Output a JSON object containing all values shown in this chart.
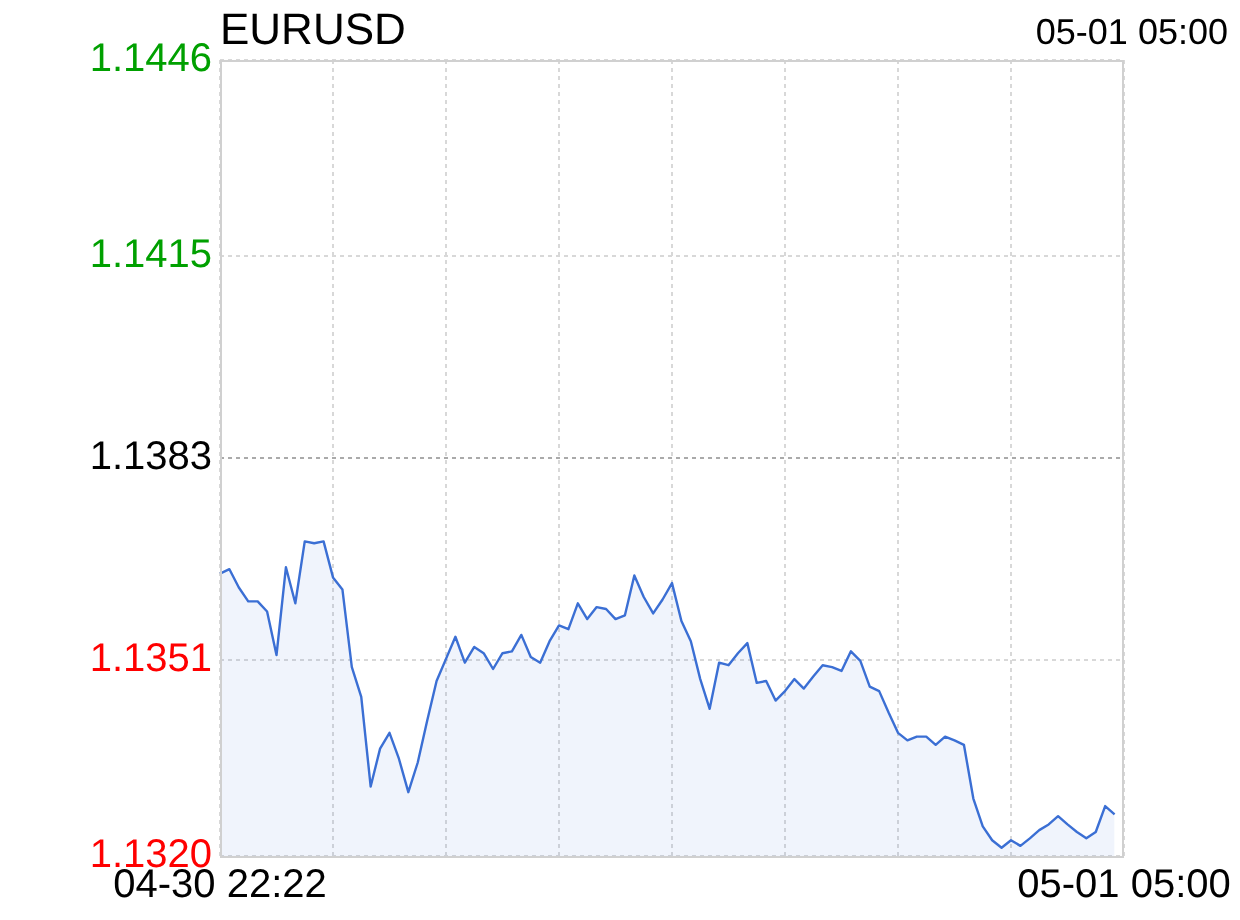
{
  "chart_data": {
    "type": "area",
    "title": "EURUSD",
    "subtitle": "05-01 05:00",
    "categories": [
      "04-30 22:22",
      null,
      null,
      null,
      null,
      null,
      null,
      null,
      null,
      null,
      null,
      null,
      null,
      null,
      null,
      null,
      null,
      null,
      null,
      null,
      null,
      null,
      null,
      null,
      null,
      null,
      null,
      null,
      null,
      null,
      null,
      null,
      null,
      null,
      null,
      null,
      null,
      null,
      null,
      null,
      null,
      null,
      null,
      null,
      null,
      null,
      null,
      null,
      null,
      null,
      null,
      null,
      null,
      null,
      null,
      null,
      null,
      null,
      null,
      null,
      null,
      null,
      null,
      null,
      null,
      null,
      null,
      null,
      null,
      null,
      null,
      null,
      null,
      null,
      null,
      null,
      null,
      null,
      null,
      null,
      null,
      null,
      null,
      null,
      null,
      null,
      null,
      null,
      null,
      null,
      null,
      null,
      null,
      null,
      null,
      null,
      "05-01 05:00"
    ],
    "ylim": [
      1.132,
      1.1446
    ],
    "yticks": [
      {
        "value": 1.132,
        "label": "1.1320"
      },
      1.1351,
      1.1383,
      1.1415,
      1.1446
    ],
    "ref_lines": [
      {
        "axis": "y",
        "value": 1.1383,
        "color": "#aaaaaa",
        "line_style": "dotted"
      }
    ],
    "grid": true,
    "legend": false,
    "marker": "none",
    "line_style": "solid",
    "series": [
      {
        "color": "#3b6fd4",
        "values": [
          1.13647,
          1.13654,
          1.13625,
          1.13603,
          1.13603,
          1.13587,
          1.13518,
          1.13657,
          1.136,
          1.13698,
          1.13695,
          1.13698,
          1.13641,
          1.13622,
          1.13499,
          1.13452,
          1.1331,
          1.1337,
          1.13395,
          1.13354,
          1.13301,
          1.13348,
          1.13414,
          1.13477,
          1.13512,
          1.13547,
          1.13506,
          1.13531,
          1.13521,
          1.13496,
          1.13521,
          1.13524,
          1.1355,
          1.13515,
          1.13506,
          1.1354,
          1.13565,
          1.13559,
          1.136,
          1.13575,
          1.13594,
          1.13591,
          1.13575,
          1.13581,
          1.13644,
          1.1361,
          1.13584,
          1.13606,
          1.13632,
          1.13572,
          1.1354,
          1.1348,
          1.13433,
          1.13506,
          1.13502,
          1.13521,
          1.13537,
          1.13474,
          1.13477,
          1.13446,
          1.13461,
          1.1348,
          1.13465,
          1.13484,
          1.13502,
          1.13499,
          1.13493,
          1.13524,
          1.13509,
          1.13468,
          1.13461,
          1.13427,
          1.13395,
          1.13383,
          1.13389,
          1.13389,
          1.13376,
          1.13389,
          1.13383,
          1.13376,
          1.13291,
          1.13247,
          1.13225,
          1.13213,
          1.13225,
          1.13216,
          1.13228,
          1.13241,
          1.1325,
          1.13263,
          1.1325,
          1.13238,
          1.13228,
          1.13238,
          1.13279,
          1.13266,
          null
        ]
      }
    ]
  }
}
